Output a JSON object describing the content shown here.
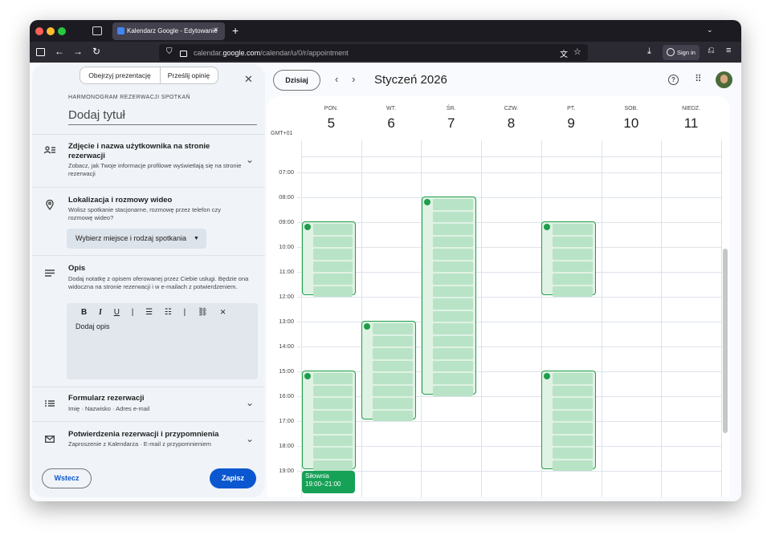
{
  "browser": {
    "tab_title": "Kalendarz Google - Edytowanie",
    "url_prefix": "calendar.",
    "url_domain": "google.com",
    "url_path": "/calendar/u/0/r/appointment",
    "sign_in": "Sign in"
  },
  "panel": {
    "tour": "Obejrzyj prezentację",
    "feedback": "Prześlij opinię",
    "heading": "HARMONOGRAM REZERWACJI SPOTKAŃ",
    "title_placeholder": "Dodaj tytuł",
    "sections": [
      {
        "title": "Zdjęcie i nazwa użytkownika na stronie rezerwacji",
        "description": "Zobacz, jak Twoje informacje profilowe wyświetlają się na stronie rezerwacji"
      },
      {
        "title": "Lokalizacja i rozmowy wideo",
        "description": "Wolisz spotkanie stacjonarne, rozmowę przez telefon czy rozmowę wideo?",
        "button": "Wybierz miejsce i rodzaj spotkania"
      },
      {
        "title": "Opis",
        "description": "Dodaj notatkę z opisem oferowanej przez Ciebie usługi. Będzie ona widoczna na stronie rezerwacji i w e-mailach z potwierdzeniem.",
        "editor_placeholder": "Dodaj opis"
      },
      {
        "title": "Formularz rezerwacji",
        "description": "Imię · Nazwisko · Adres e-mail"
      },
      {
        "title": "Potwierdzenia rezerwacji i przypomnienia",
        "description": "Zaproszenie z Kalendarza · E-mail z przypomnieniem"
      }
    ],
    "back": "Wstecz",
    "save": "Zapisz"
  },
  "calendar": {
    "today": "Dzisiaj",
    "month": "Styczeń 2026",
    "timezone": "GMT+01",
    "days": [
      {
        "name": "PON.",
        "date": "5"
      },
      {
        "name": "WT.",
        "date": "6"
      },
      {
        "name": "ŚR.",
        "date": "7"
      },
      {
        "name": "CZW.",
        "date": "8"
      },
      {
        "name": "PT.",
        "date": "9"
      },
      {
        "name": "SOB.",
        "date": "10"
      },
      {
        "name": "NIEDZ.",
        "date": "11"
      }
    ],
    "hours": [
      "07:00",
      "08:00",
      "09:00",
      "10:00",
      "11:00",
      "12:00",
      "13:00",
      "14:00",
      "15:00",
      "16:00",
      "17:00",
      "18:00",
      "19:00"
    ],
    "event": {
      "title": "Siłownia",
      "time": "19:00–21:00"
    }
  }
}
